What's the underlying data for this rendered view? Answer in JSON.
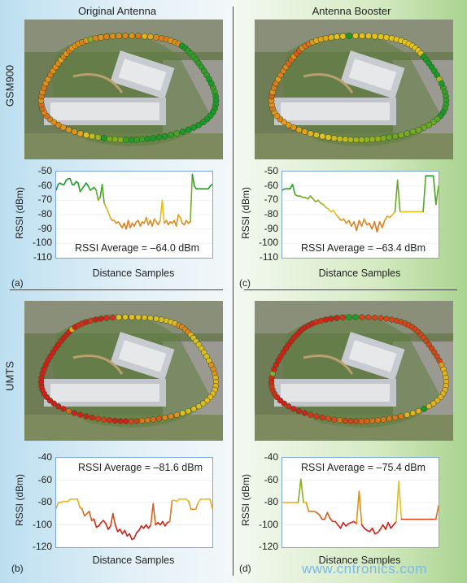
{
  "columns": [
    "Original Antenna",
    "Antenna Booster"
  ],
  "rows": [
    "GSM900",
    "UMTS"
  ],
  "watermark": "www.cntronics.com",
  "colors": {
    "strong": "#1a9a2a",
    "mid": "#e6c020",
    "weak": "#d0201a",
    "axis_frame": "#7fa7d6"
  },
  "chart_data": [
    {
      "type": "line",
      "panel": "(a)",
      "title": "",
      "xlabel": "Distance Samples",
      "ylabel": "RSSI (dBm)",
      "ylim": [
        -110,
        -50
      ],
      "yticks": [
        -50,
        -60,
        -70,
        -80,
        -90,
        -100,
        -110
      ],
      "annotation": "RSSI Average = –64.0 dBm",
      "values": [
        -63,
        -59,
        -58,
        -59,
        -59,
        -56,
        -55,
        -55,
        -59,
        -59,
        -57,
        -58,
        -64,
        -62,
        -60,
        -58,
        -60,
        -63,
        -62,
        -61,
        -63,
        -70,
        -68,
        -59,
        -72,
        -75,
        -78,
        -82,
        -84,
        -84,
        -86,
        -85,
        -87,
        -89,
        -86,
        -90,
        -84,
        -89,
        -86,
        -88,
        -85,
        -84,
        -88,
        -85,
        -86,
        -82,
        -87,
        -84,
        -88,
        -83,
        -85,
        -87,
        -84,
        -70,
        -86,
        -84,
        -87,
        -85,
        -86,
        -84,
        -88,
        -80,
        -82,
        -86,
        -87,
        -84,
        -86,
        -85,
        -52,
        -60,
        -62,
        -62,
        -62,
        -62,
        -62,
        -62,
        -62,
        -60,
        -59
      ]
    },
    {
      "type": "line",
      "panel": "(c)",
      "title": "",
      "xlabel": "Distance Samples",
      "ylabel": "RSSI (dBm)",
      "ylim": [
        -110,
        -50
      ],
      "yticks": [
        -50,
        -60,
        -70,
        -80,
        -90,
        -100,
        -110
      ],
      "annotation": "RSSI Average = –63.4 dBm",
      "values": [
        -63,
        -62,
        -62,
        -62,
        -59,
        -66,
        -67,
        -67,
        -68,
        -68,
        -69,
        -67,
        -69,
        -71,
        -70,
        -72,
        -73,
        -75,
        -76,
        -78,
        -77,
        -80,
        -82,
        -84,
        -83,
        -86,
        -84,
        -88,
        -85,
        -91,
        -84,
        -88,
        -83,
        -87,
        -86,
        -90,
        -85,
        -92,
        -85,
        -89,
        -84,
        -81,
        -82,
        -80,
        -78,
        -56,
        -78,
        -78,
        -78,
        -78,
        -78,
        -78,
        -78,
        -78,
        -78,
        -78,
        -53,
        -53,
        -53,
        -53,
        -73,
        -60
      ]
    },
    {
      "type": "line",
      "panel": "(b)",
      "title": "",
      "xlabel": "Distance Samples",
      "ylabel": "RSSI (dBm)",
      "ylim": [
        -120,
        -40
      ],
      "yticks": [
        -40,
        -60,
        -80,
        -100,
        -120
      ],
      "annotation": "RSSI Average = –81.6 dBm",
      "values": [
        -85,
        -80,
        -80,
        -79,
        -79,
        -79,
        -77,
        -77,
        -77,
        -77,
        -84,
        -86,
        -92,
        -90,
        -88,
        -96,
        -95,
        -102,
        -101,
        -98,
        -96,
        -99,
        -104,
        -101,
        -90,
        -100,
        -106,
        -104,
        -108,
        -105,
        -110,
        -108,
        -113,
        -112,
        -107,
        -105,
        -101,
        -103,
        -100,
        -103,
        -100,
        -81,
        -100,
        -98,
        -100,
        -97,
        -101,
        -98,
        -97,
        -78,
        -78,
        -79,
        -77,
        -77,
        -77,
        -77,
        -79,
        -86,
        -86,
        -86,
        -80,
        -77,
        -77,
        -77,
        -77,
        -77,
        -85
      ]
    },
    {
      "type": "line",
      "panel": "(d)",
      "title": "",
      "xlabel": "Distance Samples",
      "ylabel": "RSSI (dBm)",
      "ylim": [
        -120,
        -40
      ],
      "yticks": [
        -40,
        -60,
        -80,
        -100,
        -120
      ],
      "annotation": "RSSI Average = –75.4 dBm",
      "values": [
        -80,
        -80,
        -80,
        -80,
        -80,
        -80,
        -80,
        -59,
        -80,
        -80,
        -88,
        -88,
        -88,
        -89,
        -91,
        -95,
        -95,
        -89,
        -94,
        -97,
        -97,
        -100,
        -103,
        -98,
        -101,
        -99,
        -98,
        -97,
        -99,
        -70,
        -100,
        -103,
        -105,
        -106,
        -103,
        -108,
        -107,
        -104,
        -100,
        -104,
        -98,
        -103,
        -100,
        -97,
        -61,
        -95,
        -95,
        -95,
        -95,
        -95,
        -95,
        -95,
        -95,
        -95,
        -95,
        -95,
        -95,
        -95,
        -95,
        -83
      ]
    }
  ]
}
